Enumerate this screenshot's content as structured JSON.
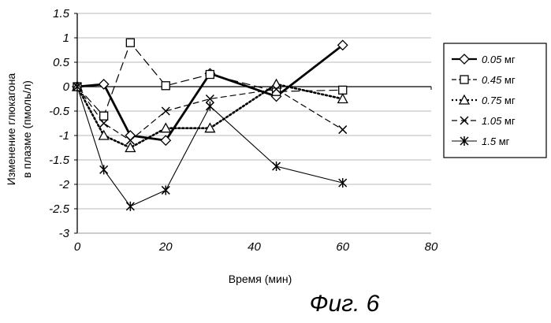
{
  "chart_data": {
    "type": "line",
    "title": "",
    "xlabel": "Время (мин)",
    "ylabel_lines": [
      "Изменение глюкагона",
      "в плазме (пмоль/л)"
    ],
    "xlim": [
      0,
      80
    ],
    "ylim": [
      -3,
      1.5
    ],
    "xticks": [
      0,
      20,
      40,
      60,
      80
    ],
    "yticks": [
      1.5,
      1,
      0.5,
      0,
      -0.5,
      -1,
      -1.5,
      -2,
      -2.5,
      -3
    ],
    "xtick_labels": [
      "0",
      "20",
      "40",
      "60",
      "80"
    ],
    "ytick_labels": [
      "1.5",
      "1",
      "0.5",
      "0",
      "-0.5",
      "-1",
      "-1.5",
      "-2",
      "-2.5",
      "-3"
    ],
    "grid": "horizontal",
    "legend_position": "right",
    "series": [
      {
        "name": "0.05",
        "unit": "мг",
        "marker": "diamond",
        "line_style": "thick-solid",
        "x": [
          0,
          6,
          12,
          20,
          30,
          45,
          60
        ],
        "y": [
          0,
          0.05,
          -1.0,
          -1.1,
          0.27,
          -0.2,
          0.85
        ]
      },
      {
        "name": "0.45",
        "unit": "мг",
        "marker": "square",
        "line_style": "long-dash",
        "x": [
          0,
          6,
          12,
          20,
          30,
          45,
          60
        ],
        "y": [
          0,
          -0.6,
          0.9,
          0.02,
          0.25,
          -0.1,
          -0.07
        ]
      },
      {
        "name": "0.75",
        "unit": "мг",
        "marker": "triangle",
        "line_style": "dotted",
        "x": [
          0,
          6,
          12,
          20,
          30,
          45,
          60
        ],
        "y": [
          0,
          -1.0,
          -1.25,
          -0.85,
          -0.85,
          0.05,
          -0.25
        ]
      },
      {
        "name": "1.05",
        "unit": "мг",
        "marker": "x",
        "line_style": "dash",
        "x": [
          0,
          6,
          12,
          20,
          30,
          45,
          60
        ],
        "y": [
          0,
          -0.75,
          -1.1,
          -0.5,
          -0.25,
          -0.05,
          -0.88
        ]
      },
      {
        "name": "1.5",
        "unit": "мг",
        "marker": "asterisk",
        "line_style": "thin-solid",
        "x": [
          0,
          6,
          12,
          20,
          30,
          45,
          60
        ],
        "y": [
          0,
          -1.7,
          -2.45,
          -2.12,
          -0.4,
          -1.63,
          -1.97
        ]
      }
    ]
  },
  "caption": "Фиг. 6",
  "colors": {
    "line": "#000000",
    "grid": "#b8b8b8",
    "background": "#ffffff"
  }
}
